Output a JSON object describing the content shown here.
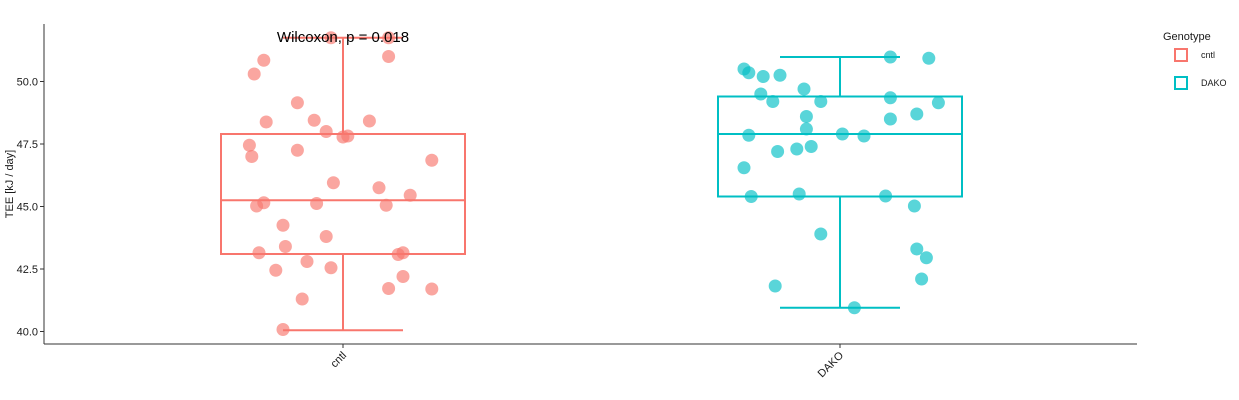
{
  "chart_data": {
    "type": "box",
    "categories": [
      "cntl",
      "DAKO"
    ],
    "ylabel": "TEE [kJ / day]",
    "xlabel": "",
    "ylim": [
      39.5,
      52.3
    ],
    "yticks": [
      40.0,
      42.5,
      45.0,
      47.5,
      50.0
    ],
    "ytick_labels": [
      "40.0",
      "42.5",
      "45.0",
      "47.5",
      "50.0"
    ],
    "annotation": "Wilcoxon, p = 0.018",
    "legend": {
      "title": "Genotype",
      "placement": "right",
      "entries": [
        "cntl",
        "DAKO"
      ]
    },
    "colors": {
      "cntl": "#F8766D",
      "DAKO": "#00BFC4"
    },
    "boxes": [
      {
        "name": "cntl",
        "whisker_low": 40.05,
        "q1": 43.1,
        "median": 45.25,
        "q3": 47.9,
        "whisker_high": 51.75
      },
      {
        "name": "DAKO",
        "whisker_low": 40.95,
        "q1": 45.4,
        "median": 47.9,
        "q3": 49.4,
        "whisker_high": 50.98
      }
    ],
    "series": [
      {
        "name": "cntl",
        "points": [
          {
            "x": -0.05,
            "y": 51.75
          },
          {
            "x": 0.19,
            "y": 51.75
          },
          {
            "x": -0.33,
            "y": 50.85
          },
          {
            "x": 0.19,
            "y": 51.0
          },
          {
            "x": -0.37,
            "y": 50.3
          },
          {
            "x": -0.19,
            "y": 49.15
          },
          {
            "x": -0.12,
            "y": 48.45
          },
          {
            "x": 0.11,
            "y": 48.42
          },
          {
            "x": -0.32,
            "y": 48.38
          },
          {
            "x": -0.07,
            "y": 48.0
          },
          {
            "x": 0.0,
            "y": 47.78
          },
          {
            "x": 0.02,
            "y": 47.82
          },
          {
            "x": -0.39,
            "y": 47.45
          },
          {
            "x": -0.19,
            "y": 47.25
          },
          {
            "x": -0.38,
            "y": 47.0
          },
          {
            "x": 0.37,
            "y": 46.85
          },
          {
            "x": -0.04,
            "y": 45.95
          },
          {
            "x": 0.15,
            "y": 45.75
          },
          {
            "x": 0.28,
            "y": 45.45
          },
          {
            "x": -0.33,
            "y": 45.15
          },
          {
            "x": -0.36,
            "y": 45.02
          },
          {
            "x": -0.11,
            "y": 45.12
          },
          {
            "x": 0.18,
            "y": 45.05
          },
          {
            "x": -0.25,
            "y": 44.25
          },
          {
            "x": -0.07,
            "y": 43.8
          },
          {
            "x": -0.24,
            "y": 43.4
          },
          {
            "x": -0.35,
            "y": 43.15
          },
          {
            "x": 0.23,
            "y": 43.08
          },
          {
            "x": 0.25,
            "y": 43.15
          },
          {
            "x": -0.15,
            "y": 42.8
          },
          {
            "x": -0.05,
            "y": 42.55
          },
          {
            "x": -0.28,
            "y": 42.45
          },
          {
            "x": 0.25,
            "y": 42.2
          },
          {
            "x": 0.19,
            "y": 41.72
          },
          {
            "x": 0.37,
            "y": 41.7
          },
          {
            "x": -0.17,
            "y": 41.3
          },
          {
            "x": -0.25,
            "y": 40.08
          }
        ]
      },
      {
        "name": "DAKO",
        "points": [
          {
            "x": 0.21,
            "y": 50.98
          },
          {
            "x": 0.37,
            "y": 50.93
          },
          {
            "x": -0.4,
            "y": 50.5
          },
          {
            "x": -0.38,
            "y": 50.35
          },
          {
            "x": -0.32,
            "y": 50.2
          },
          {
            "x": -0.25,
            "y": 50.25
          },
          {
            "x": -0.15,
            "y": 49.7
          },
          {
            "x": -0.33,
            "y": 49.5
          },
          {
            "x": -0.28,
            "y": 49.2
          },
          {
            "x": -0.08,
            "y": 49.2
          },
          {
            "x": 0.21,
            "y": 49.35
          },
          {
            "x": 0.41,
            "y": 49.15
          },
          {
            "x": -0.14,
            "y": 48.6
          },
          {
            "x": 0.32,
            "y": 48.7
          },
          {
            "x": 0.21,
            "y": 48.5
          },
          {
            "x": -0.14,
            "y": 48.1
          },
          {
            "x": -0.38,
            "y": 47.85
          },
          {
            "x": 0.01,
            "y": 47.9
          },
          {
            "x": 0.1,
            "y": 47.82
          },
          {
            "x": -0.12,
            "y": 47.4
          },
          {
            "x": -0.18,
            "y": 47.3
          },
          {
            "x": -0.26,
            "y": 47.2
          },
          {
            "x": -0.4,
            "y": 46.55
          },
          {
            "x": -0.17,
            "y": 45.5
          },
          {
            "x": -0.37,
            "y": 45.4
          },
          {
            "x": 0.19,
            "y": 45.42
          },
          {
            "x": 0.31,
            "y": 45.02
          },
          {
            "x": -0.08,
            "y": 43.9
          },
          {
            "x": 0.32,
            "y": 43.3
          },
          {
            "x": 0.36,
            "y": 42.95
          },
          {
            "x": 0.34,
            "y": 42.1
          },
          {
            "x": -0.27,
            "y": 41.82
          },
          {
            "x": 0.06,
            "y": 40.95
          }
        ]
      }
    ]
  }
}
